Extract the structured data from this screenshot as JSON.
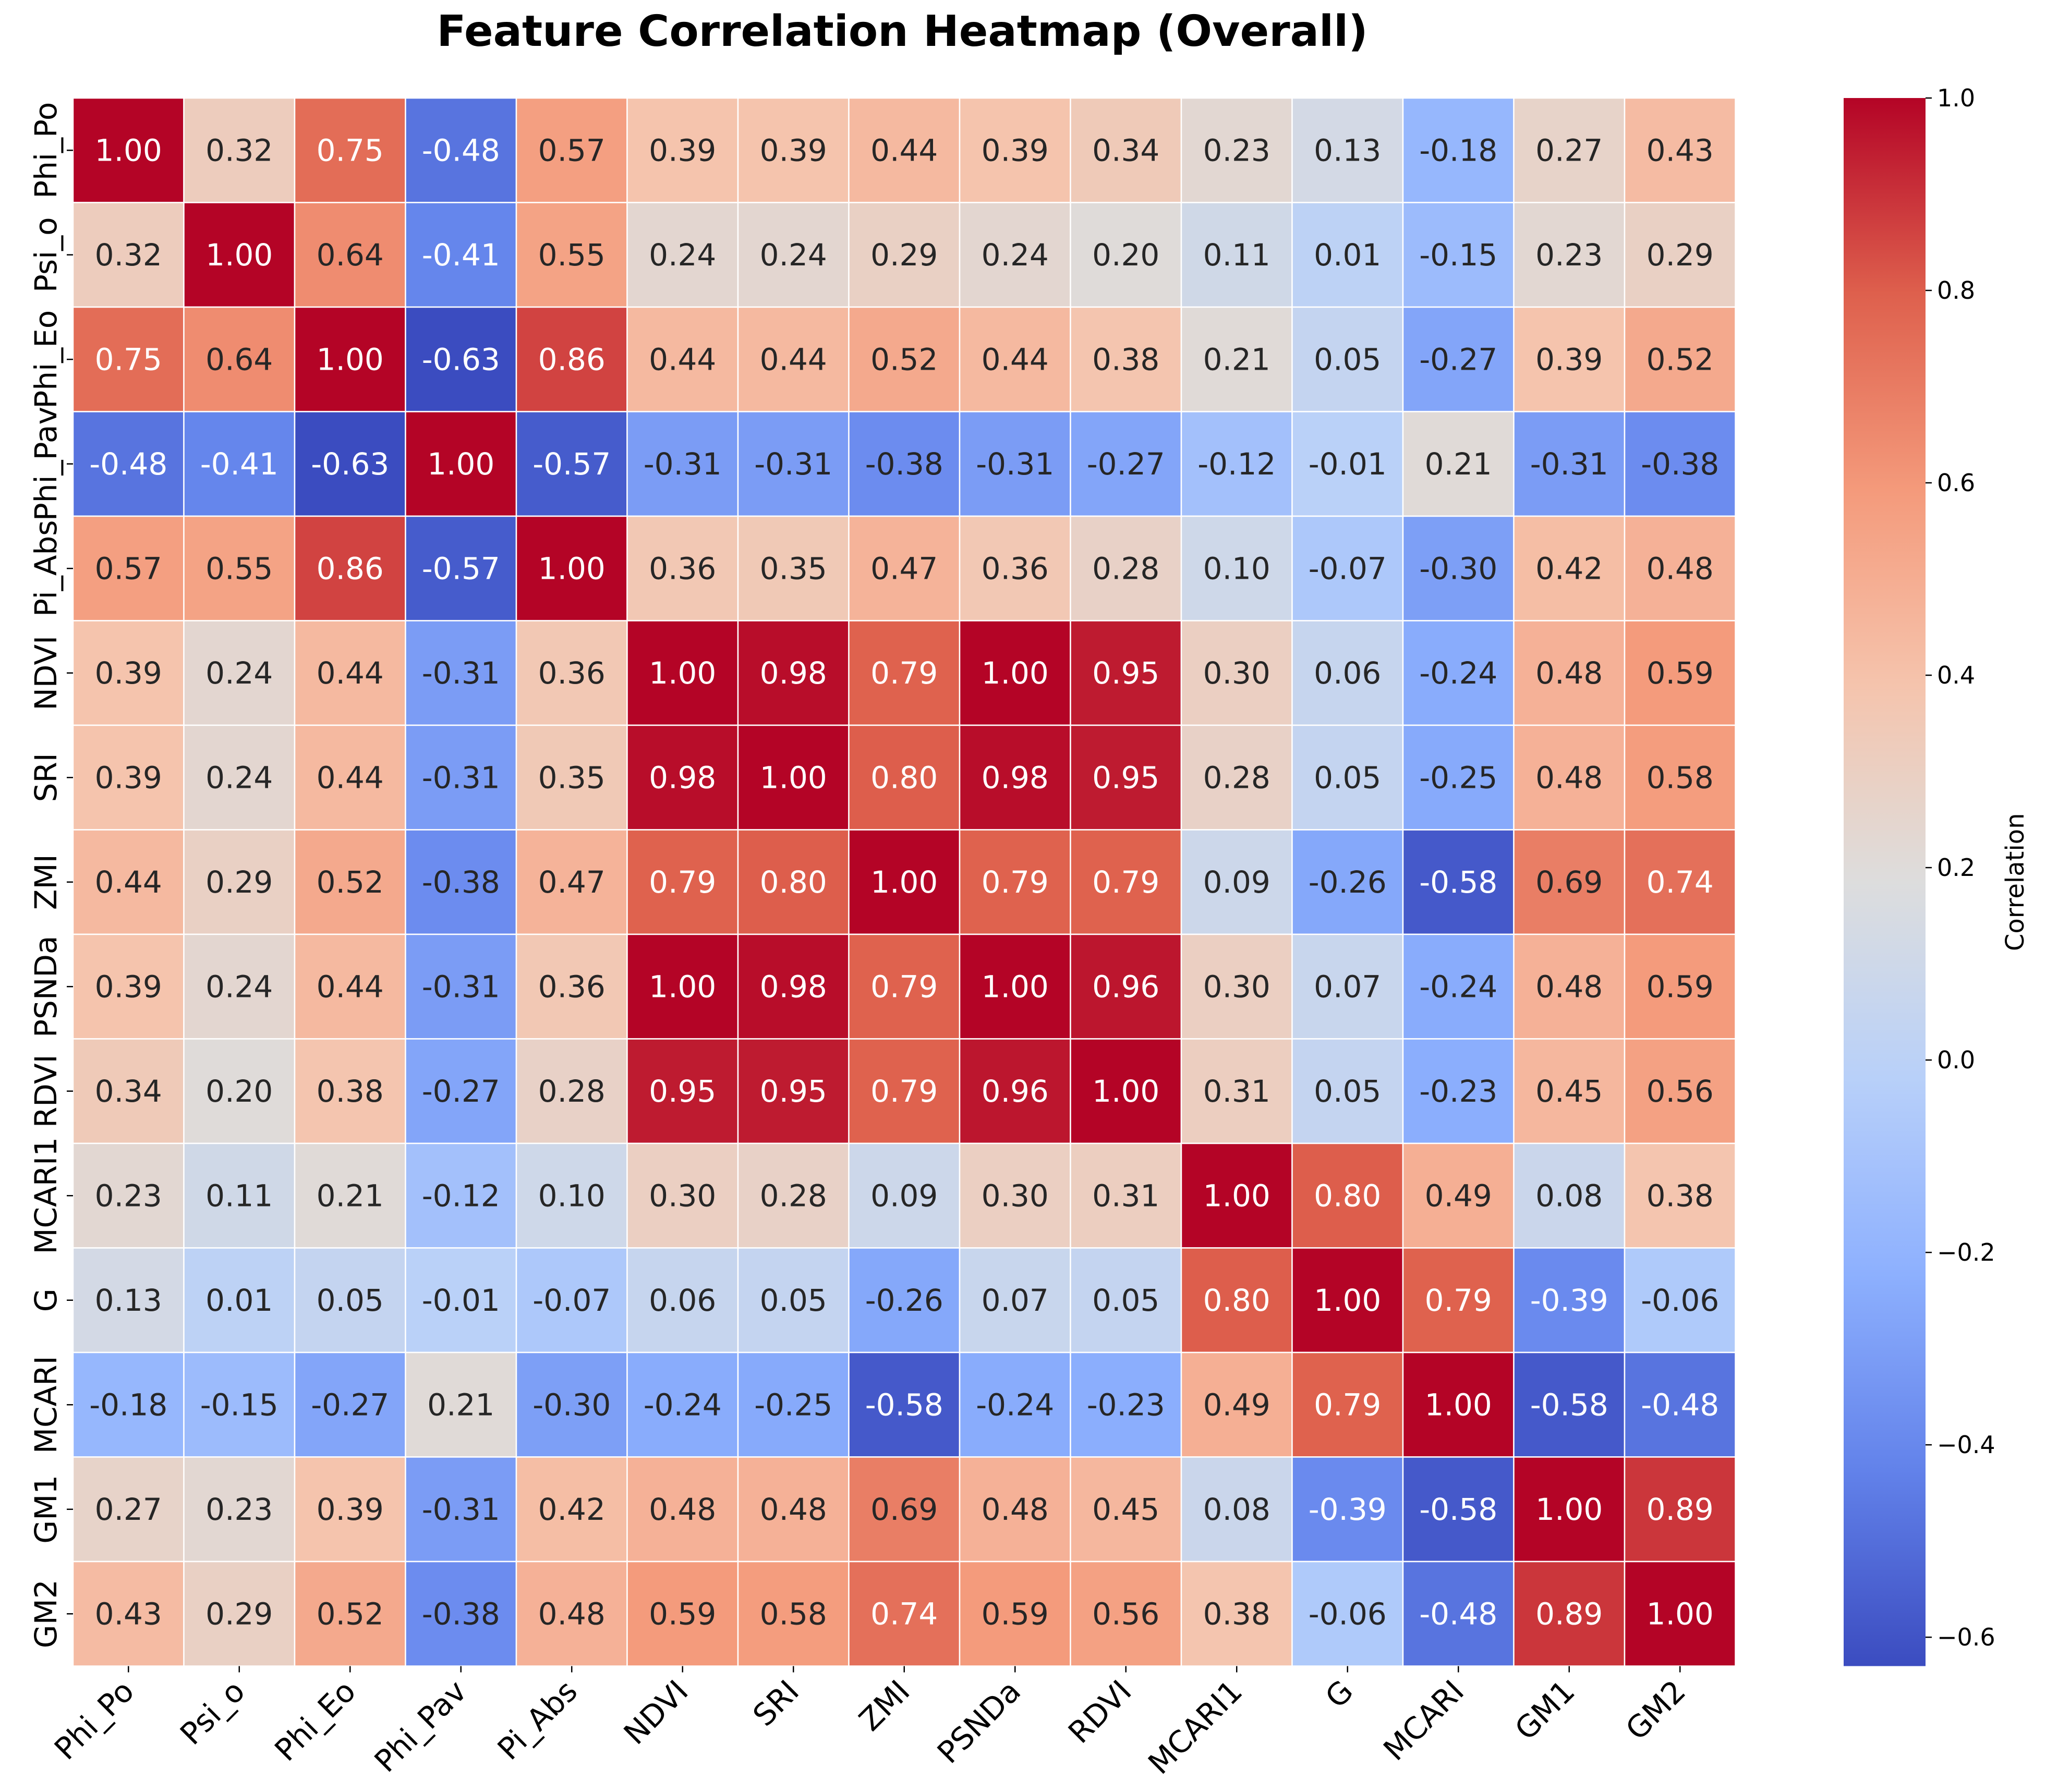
{
  "chart_data": {
    "type": "heatmap",
    "title": "Feature Correlation Heatmap (Overall)",
    "x_labels": [
      "Phi_Po",
      "Psi_o",
      "Phi_Eo",
      "Phi_Pav",
      "Pi_Abs",
      "NDVI",
      "SRI",
      "ZMI",
      "PSNDa",
      "RDVI",
      "MCARI1",
      "G",
      "MCARI",
      "GM1",
      "GM2"
    ],
    "y_labels": [
      "Phi_Po",
      "Psi_o",
      "Phi_Eo",
      "Phi_Pav",
      "Pi_Abs",
      "NDVI",
      "SRI",
      "ZMI",
      "PSNDa",
      "RDVI",
      "MCARI1",
      "G",
      "MCARI",
      "GM1",
      "GM2"
    ],
    "values": [
      [
        1.0,
        0.32,
        0.75,
        -0.48,
        0.57,
        0.39,
        0.39,
        0.44,
        0.39,
        0.34,
        0.23,
        0.13,
        -0.18,
        0.27,
        0.43
      ],
      [
        0.32,
        1.0,
        0.64,
        -0.41,
        0.55,
        0.24,
        0.24,
        0.29,
        0.24,
        0.2,
        0.11,
        0.01,
        -0.15,
        0.23,
        0.29
      ],
      [
        0.75,
        0.64,
        1.0,
        -0.63,
        0.86,
        0.44,
        0.44,
        0.52,
        0.44,
        0.38,
        0.21,
        0.05,
        -0.27,
        0.39,
        0.52
      ],
      [
        -0.48,
        -0.41,
        -0.63,
        1.0,
        -0.57,
        -0.31,
        -0.31,
        -0.38,
        -0.31,
        -0.27,
        -0.12,
        -0.01,
        0.21,
        -0.31,
        -0.38
      ],
      [
        0.57,
        0.55,
        0.86,
        -0.57,
        1.0,
        0.36,
        0.35,
        0.47,
        0.36,
        0.28,
        0.1,
        -0.07,
        -0.3,
        0.42,
        0.48
      ],
      [
        0.39,
        0.24,
        0.44,
        -0.31,
        0.36,
        1.0,
        0.98,
        0.79,
        1.0,
        0.95,
        0.3,
        0.06,
        -0.24,
        0.48,
        0.59
      ],
      [
        0.39,
        0.24,
        0.44,
        -0.31,
        0.35,
        0.98,
        1.0,
        0.8,
        0.98,
        0.95,
        0.28,
        0.05,
        -0.25,
        0.48,
        0.58
      ],
      [
        0.44,
        0.29,
        0.52,
        -0.38,
        0.47,
        0.79,
        0.8,
        1.0,
        0.79,
        0.79,
        0.09,
        -0.26,
        -0.58,
        0.69,
        0.74
      ],
      [
        0.39,
        0.24,
        0.44,
        -0.31,
        0.36,
        1.0,
        0.98,
        0.79,
        1.0,
        0.96,
        0.3,
        0.07,
        -0.24,
        0.48,
        0.59
      ],
      [
        0.34,
        0.2,
        0.38,
        -0.27,
        0.28,
        0.95,
        0.95,
        0.79,
        0.96,
        1.0,
        0.31,
        0.05,
        -0.23,
        0.45,
        0.56
      ],
      [
        0.23,
        0.11,
        0.21,
        -0.12,
        0.1,
        0.3,
        0.28,
        0.09,
        0.3,
        0.31,
        1.0,
        0.8,
        0.49,
        0.08,
        0.38
      ],
      [
        0.13,
        0.01,
        0.05,
        -0.01,
        -0.07,
        0.06,
        0.05,
        -0.26,
        0.07,
        0.05,
        0.8,
        1.0,
        0.79,
        -0.39,
        -0.06
      ],
      [
        -0.18,
        -0.15,
        -0.27,
        0.21,
        -0.3,
        -0.24,
        -0.25,
        -0.58,
        -0.24,
        -0.23,
        0.49,
        0.79,
        1.0,
        -0.58,
        -0.48
      ],
      [
        0.27,
        0.23,
        0.39,
        -0.31,
        0.42,
        0.48,
        0.48,
        0.69,
        0.48,
        0.45,
        0.08,
        -0.39,
        -0.58,
        1.0,
        0.89
      ],
      [
        0.43,
        0.29,
        0.52,
        -0.38,
        0.48,
        0.59,
        0.58,
        0.74,
        0.59,
        0.56,
        0.38,
        -0.06,
        -0.48,
        0.89,
        1.0
      ]
    ],
    "vmin": -0.63,
    "vmax": 1.0,
    "colormap": "coolwarm",
    "colorbar": {
      "label": "Correlation",
      "ticks": [
        1.0,
        0.8,
        0.6,
        0.4,
        0.2,
        0.0,
        -0.2,
        -0.4,
        -0.6
      ],
      "tick_labels": [
        "1.0",
        "0.8",
        "0.6",
        "0.4",
        "0.2",
        "0.0",
        "−0.2",
        "−0.4",
        "−0.6"
      ]
    },
    "value_format": "2 decimals",
    "grid": "white cell borders"
  }
}
